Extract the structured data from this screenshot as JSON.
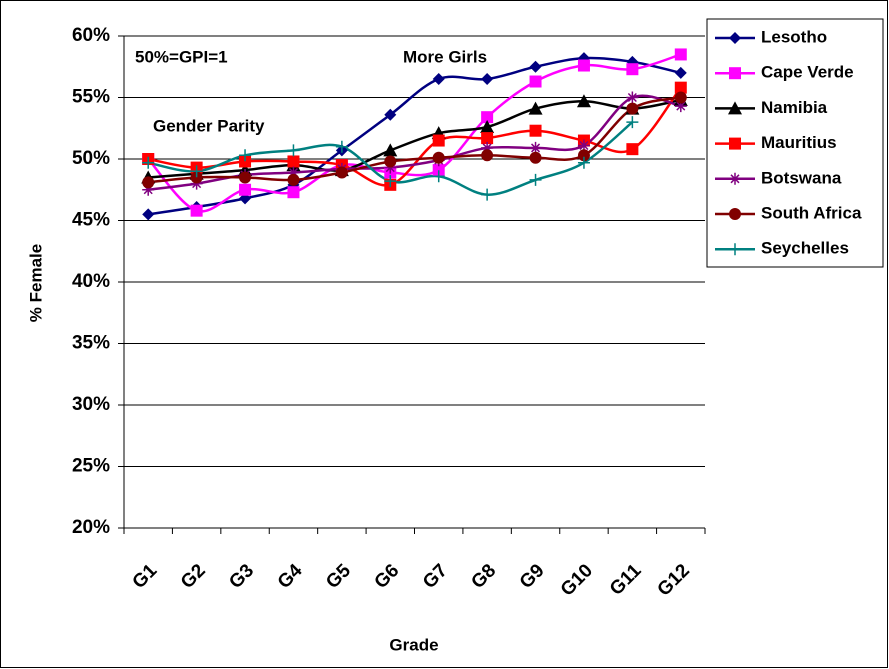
{
  "chart_data": {
    "type": "line",
    "annotations": [
      "50%=GPI=1",
      "More Girls",
      "Gender Parity"
    ],
    "x_label": "Grade",
    "y_label": "% Female",
    "categories": [
      "G1",
      "G2",
      "G3",
      "G4",
      "G5",
      "G6",
      "G7",
      "G8",
      "G9",
      "G10",
      "G11",
      "G12"
    ],
    "series": [
      {
        "name": "Lesotho",
        "color": "#000080",
        "marker": "diamond",
        "values": [
          45.5,
          46.1,
          46.8,
          47.9,
          50.7,
          53.6,
          56.5,
          56.5,
          57.5,
          58.2,
          57.9,
          57.0
        ]
      },
      {
        "name": "Cape Verde",
        "color": "#ff00ff",
        "marker": "square",
        "values": [
          50.0,
          45.8,
          47.5,
          47.3,
          49.5,
          48.9,
          49.1,
          53.4,
          56.3,
          57.6,
          57.3,
          58.5
        ]
      },
      {
        "name": "Namibia",
        "color": "#000000",
        "marker": "triangle",
        "values": [
          48.5,
          48.8,
          49.1,
          49.5,
          49.1,
          50.7,
          52.1,
          52.6,
          54.1,
          54.7,
          54.1,
          54.8
        ]
      },
      {
        "name": "Mauritius",
        "color": "#ff0000",
        "marker": "square",
        "values": [
          50.0,
          49.3,
          49.8,
          49.8,
          49.5,
          47.9,
          51.5,
          51.7,
          52.3,
          51.5,
          50.8,
          55.8
        ]
      },
      {
        "name": "Botswana",
        "color": "#800080",
        "marker": "star",
        "values": [
          47.5,
          48.0,
          48.7,
          48.9,
          49.2,
          49.3,
          49.9,
          50.9,
          50.9,
          51.1,
          55.0,
          54.3
        ]
      },
      {
        "name": "South Africa",
        "color": "#800000",
        "marker": "circle",
        "values": [
          48.1,
          48.5,
          48.5,
          48.3,
          48.9,
          49.8,
          50.1,
          50.3,
          50.1,
          50.3,
          54.1,
          55.0
        ]
      },
      {
        "name": "Seychelles",
        "color": "#008080",
        "marker": "plus",
        "values": [
          49.7,
          49.0,
          50.3,
          50.7,
          51.0,
          48.2,
          48.6,
          47.1,
          48.3,
          49.7,
          53.0,
          null
        ]
      }
    ],
    "ylim": [
      20,
      60
    ],
    "yticks": [
      {
        "value": 20,
        "label": "20%"
      },
      {
        "value": 25,
        "label": "25%"
      },
      {
        "value": 30,
        "label": "30%"
      },
      {
        "value": 35,
        "label": "35%"
      },
      {
        "value": 40,
        "label": "40%"
      },
      {
        "value": 45,
        "label": "45%"
      },
      {
        "value": 50,
        "label": "50%"
      },
      {
        "value": 55,
        "label": "55%"
      },
      {
        "value": 60,
        "label": "60%"
      }
    ],
    "grid": true,
    "legend": "right"
  }
}
